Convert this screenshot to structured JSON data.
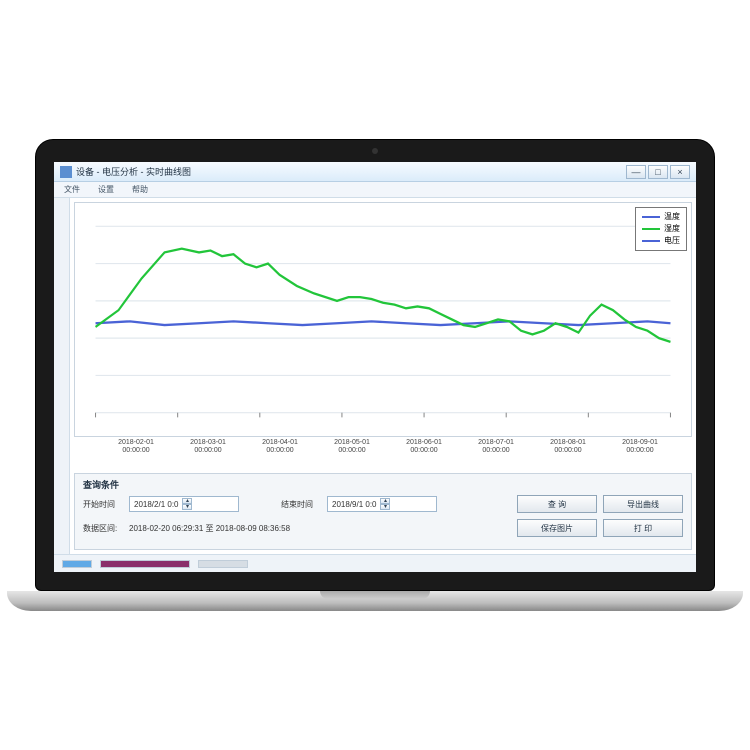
{
  "window": {
    "title": "设备 - 电压分析 - 实时曲线图",
    "min": "—",
    "max": "□",
    "close": "×"
  },
  "toolbar": {
    "item1": "文件",
    "item2": "设置",
    "item3": "帮助"
  },
  "legend": {
    "series1": {
      "label": "温度",
      "color": "#4a63d6"
    },
    "series2": {
      "label": "湿度",
      "color": "#22c53a"
    },
    "series3": {
      "label": "电压",
      "color": "#4a63d6"
    }
  },
  "chart": {
    "type": "line",
    "background_color": "#ffffff",
    "grid_color": "#e2e8ee",
    "border_color": "#c9d4df",
    "ylim": [
      0,
      100
    ],
    "baseline_y": 48,
    "x_ticks": [
      {
        "line1": "2018-02-01",
        "line2": "00:00:00"
      },
      {
        "line1": "2018-03-01",
        "line2": "00:00:00"
      },
      {
        "line1": "2018-04-01",
        "line2": "00:00:00"
      },
      {
        "line1": "2018-05-01",
        "line2": "00:00:00"
      },
      {
        "line1": "2018-06-01",
        "line2": "00:00:00"
      },
      {
        "line1": "2018-07-01",
        "line2": "00:00:00"
      },
      {
        "line1": "2018-08-01",
        "line2": "00:00:00"
      },
      {
        "line1": "2018-09-01",
        "line2": "00:00:00"
      }
    ],
    "series_blue": {
      "color": "#4a63d6",
      "width": 2,
      "points": [
        [
          0,
          48
        ],
        [
          6,
          49
        ],
        [
          12,
          47
        ],
        [
          18,
          48
        ],
        [
          24,
          49
        ],
        [
          30,
          48
        ],
        [
          36,
          47
        ],
        [
          42,
          48
        ],
        [
          48,
          49
        ],
        [
          54,
          48
        ],
        [
          60,
          47
        ],
        [
          66,
          48
        ],
        [
          72,
          49
        ],
        [
          78,
          48
        ],
        [
          84,
          47
        ],
        [
          90,
          48
        ],
        [
          96,
          49
        ],
        [
          100,
          48
        ]
      ]
    },
    "series_green": {
      "color": "#22c53a",
      "width": 2,
      "points": [
        [
          0,
          46
        ],
        [
          4,
          55
        ],
        [
          8,
          72
        ],
        [
          12,
          86
        ],
        [
          15,
          88
        ],
        [
          18,
          86
        ],
        [
          20,
          87
        ],
        [
          22,
          84
        ],
        [
          24,
          85
        ],
        [
          26,
          80
        ],
        [
          28,
          78
        ],
        [
          30,
          80
        ],
        [
          32,
          74
        ],
        [
          35,
          68
        ],
        [
          38,
          64
        ],
        [
          40,
          62
        ],
        [
          42,
          60
        ],
        [
          44,
          62
        ],
        [
          46,
          62
        ],
        [
          48,
          61
        ],
        [
          50,
          59
        ],
        [
          52,
          58
        ],
        [
          54,
          56
        ],
        [
          56,
          57
        ],
        [
          58,
          56
        ],
        [
          60,
          53
        ],
        [
          62,
          50
        ],
        [
          64,
          47
        ],
        [
          66,
          46
        ],
        [
          68,
          48
        ],
        [
          70,
          50
        ],
        [
          72,
          49
        ],
        [
          74,
          44
        ],
        [
          76,
          42
        ],
        [
          78,
          44
        ],
        [
          80,
          48
        ],
        [
          82,
          46
        ],
        [
          84,
          43
        ],
        [
          86,
          52
        ],
        [
          88,
          58
        ],
        [
          90,
          55
        ],
        [
          92,
          50
        ],
        [
          94,
          46
        ],
        [
          96,
          44
        ],
        [
          98,
          40
        ],
        [
          100,
          38
        ]
      ]
    }
  },
  "panel": {
    "title": "查询条件",
    "start_label": "开始时间",
    "start_value": "2018/2/1 0:0",
    "end_label": "结束时间",
    "end_value": "2018/9/1 0:0",
    "range_label": "数据区间:",
    "range_value": "2018-02-20 06:29:31 至 2018-08-09 08:36:58",
    "btn_query": "查  询",
    "btn_export": "导出曲线",
    "btn_saveimg": "保存图片",
    "btn_print": "打  印"
  },
  "status": {
    "seg1_color": "#5fa9e6",
    "seg1_width": 30,
    "seg2_color": "#8a2f6b",
    "seg2_width": 90,
    "seg3_color": "#d6dde4",
    "seg3_width": 50
  }
}
